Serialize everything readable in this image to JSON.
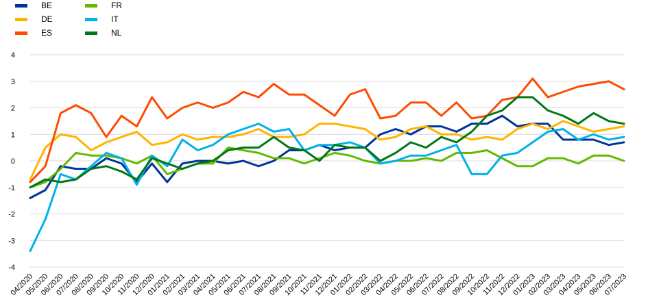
{
  "chart_data": {
    "type": "line",
    "title": "",
    "xlabel": "",
    "ylabel": "",
    "ylim": [
      -4,
      4
    ],
    "yticks": [
      -4,
      -3,
      -2,
      -1,
      0,
      1,
      2,
      3,
      4
    ],
    "grid": "horizontal",
    "legend_placement": "top-left",
    "categories": [
      "04/2020",
      "05/2020",
      "06/2020",
      "07/2020",
      "08/2020",
      "09/2020",
      "10/2020",
      "11/2020",
      "12/2020",
      "01/2021",
      "02/2021",
      "03/2021",
      "04/2021",
      "05/2021",
      "06/2021",
      "07/2021",
      "08/2021",
      "09/2021",
      "10/2021",
      "11/2021",
      "12/2021",
      "01/2022",
      "02/2022",
      "03/2022",
      "04/2022",
      "05/2022",
      "06/2022",
      "07/2022",
      "08/2022",
      "09/2022",
      "10/2022",
      "11/2022",
      "12/2022",
      "01/2023",
      "02/2023",
      "03/2023",
      "04/2023",
      "05/2023",
      "06/2023",
      "07/2023"
    ],
    "series": [
      {
        "name": "BE",
        "color": "#003399",
        "values": [
          -1.4,
          -1.1,
          -0.2,
          -0.3,
          -0.3,
          0.1,
          -0.1,
          -0.8,
          -0.1,
          -0.8,
          -0.1,
          0.0,
          0.0,
          -0.1,
          0.0,
          -0.2,
          0.0,
          0.4,
          0.4,
          0.6,
          0.4,
          0.5,
          0.5,
          1.0,
          1.2,
          1.0,
          1.3,
          1.3,
          1.1,
          1.4,
          1.4,
          1.7,
          1.3,
          1.4,
          1.4,
          0.8,
          0.8,
          0.8,
          0.6,
          0.7
        ]
      },
      {
        "name": "DE",
        "color": "#ffb400",
        "values": [
          -0.7,
          0.5,
          1.0,
          0.9,
          0.4,
          0.7,
          0.9,
          1.1,
          0.6,
          0.7,
          1.0,
          0.8,
          0.9,
          0.9,
          1.0,
          1.2,
          0.9,
          0.9,
          1.0,
          1.4,
          1.4,
          1.3,
          1.2,
          0.8,
          0.9,
          1.2,
          1.3,
          1.0,
          1.0,
          0.8,
          0.9,
          0.8,
          1.2,
          1.4,
          1.2,
          1.5,
          1.3,
          1.1,
          1.2,
          1.3
        ]
      },
      {
        "name": "ES",
        "color": "#ff4b00",
        "values": [
          -0.8,
          -0.2,
          1.8,
          2.1,
          1.8,
          0.9,
          1.7,
          1.3,
          2.4,
          1.6,
          2.0,
          2.2,
          2.0,
          2.2,
          2.6,
          2.4,
          2.9,
          2.5,
          2.5,
          2.1,
          1.7,
          2.5,
          2.7,
          1.6,
          1.7,
          2.2,
          2.2,
          1.7,
          2.2,
          1.6,
          1.7,
          2.3,
          2.4,
          3.1,
          2.4,
          2.6,
          2.8,
          2.9,
          3.0,
          2.7
        ]
      },
      {
        "name": "FR",
        "color": "#65b800",
        "values": [
          -1.0,
          -0.8,
          -0.3,
          0.3,
          0.2,
          0.2,
          0.1,
          -0.1,
          0.2,
          -0.5,
          -0.3,
          -0.1,
          -0.1,
          0.5,
          0.4,
          0.3,
          0.1,
          0.1,
          -0.1,
          0.1,
          0.3,
          0.2,
          0.0,
          -0.1,
          0.0,
          0.0,
          0.1,
          0.0,
          0.3,
          0.3,
          0.4,
          0.1,
          -0.2,
          -0.2,
          0.1,
          0.1,
          -0.1,
          0.2,
          0.2,
          0.0
        ]
      },
      {
        "name": "IT",
        "color": "#00b1ea",
        "values": [
          -3.4,
          -2.2,
          -0.5,
          -0.7,
          -0.2,
          0.3,
          0.1,
          -0.9,
          0.2,
          -0.2,
          0.8,
          0.4,
          0.6,
          1.0,
          1.2,
          1.4,
          1.1,
          1.2,
          0.4,
          0.6,
          0.6,
          0.7,
          0.5,
          -0.1,
          0.0,
          0.2,
          0.2,
          0.4,
          0.6,
          -0.5,
          -0.5,
          0.2,
          0.3,
          0.7,
          1.1,
          1.2,
          0.8,
          1.0,
          0.8,
          0.9
        ]
      },
      {
        "name": "NL",
        "color": "#007816",
        "values": [
          -1.0,
          -0.7,
          -0.8,
          -0.7,
          -0.3,
          -0.2,
          -0.4,
          -0.7,
          0.1,
          -0.1,
          -0.3,
          -0.1,
          0.0,
          0.4,
          0.5,
          0.5,
          0.9,
          0.5,
          0.4,
          0.0,
          0.6,
          0.5,
          0.5,
          0.0,
          0.3,
          0.7,
          0.5,
          0.9,
          0.7,
          1.1,
          1.7,
          1.9,
          2.4,
          2.4,
          1.9,
          1.7,
          1.4,
          1.8,
          1.5,
          1.4
        ]
      }
    ]
  }
}
